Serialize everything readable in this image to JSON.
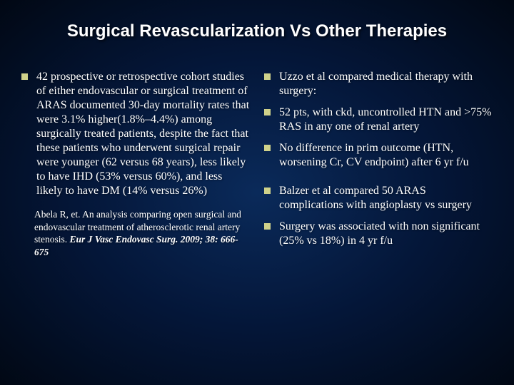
{
  "slide": {
    "title": "Surgical Revascularization Vs Other Therapies",
    "background": {
      "gradient_center": "#0a2a5a",
      "gradient_mid": "#041638",
      "gradient_edge": "#010814"
    },
    "bullet_color": "#cfd18a",
    "text_color": "#ffffff",
    "title_font": "Arial",
    "title_fontsize": 24,
    "body_font": "Times New Roman",
    "body_fontsize": 16,
    "citation_fontsize": 13.5,
    "left_column": {
      "items": [
        "42  prospective or retrospective cohort studies of either endovascular or surgical treatment of ARAS documented 30-day mortality rates that were 3.1% higher(1.8%–4.4%) among surgically treated patients, despite the fact that these patients who underwent surgical repair were younger (62 versus 68 years), less likely to have IHD (53% versus 60%), and less likely to have DM (14% versus 26%)"
      ],
      "citation": {
        "prefix": "Abela R, et. An analysis comparing open surgical and endovascular treatment of atherosclerotic renal artery stenosis. ",
        "journal": "Eur J Vasc Endovasc Surg. 2009; 38: 666-675"
      }
    },
    "right_column": {
      "items": [
        "Uzzo et al compared medical therapy with surgery:",
        "52 pts, with ckd, uncontrolled HTN and >75% RAS in any one of renal artery",
        "No difference in prim outcome (HTN, worsening Cr, CV endpoint) after 6 yr f/u",
        "Balzer et al compared 50 ARAS complications with angioplasty vs surgery",
        "Surgery was associated with non significant (25% vs 18%) in 4 yr f/u"
      ],
      "spaced_indices": [
        3
      ]
    }
  }
}
